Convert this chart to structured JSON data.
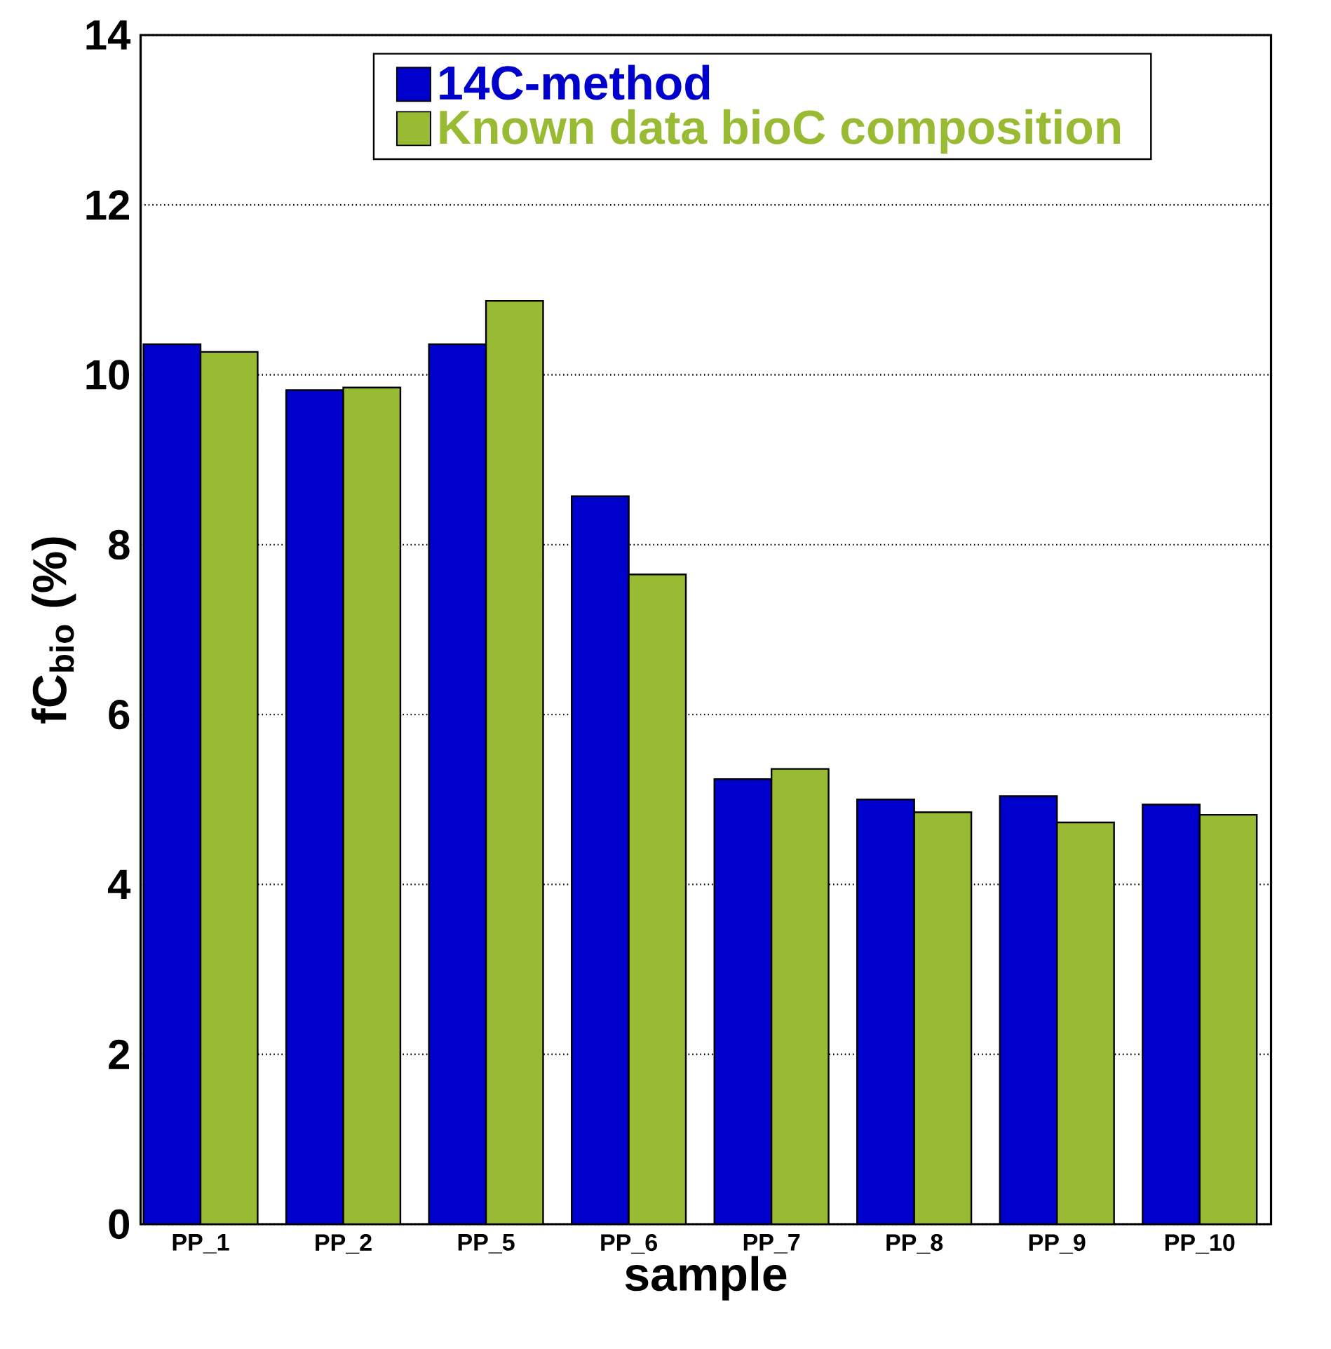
{
  "chart_data": {
    "type": "bar",
    "xlabel": "sample",
    "ylabel": "fC$_{bio}$ (%)",
    "categories": [
      "PP_1",
      "PP_2",
      "PP_5",
      "PP_6",
      "PP_7",
      "PP_8",
      "PP_9",
      "PP_10"
    ],
    "series": [
      {
        "name": "14C-method",
        "color": "#0000cc",
        "values": [
          10.36,
          9.82,
          10.36,
          8.57,
          5.24,
          5.0,
          5.04,
          4.94
        ]
      },
      {
        "name": "Known data bioC composition",
        "color": "#99bb33",
        "values": [
          10.27,
          9.85,
          10.87,
          7.65,
          5.36,
          4.85,
          4.73,
          4.82
        ]
      }
    ],
    "ylim": [
      0,
      14
    ],
    "yticks": [
      0,
      2,
      4,
      6,
      8,
      10,
      12,
      14
    ],
    "grid": "y",
    "legend": "top"
  }
}
